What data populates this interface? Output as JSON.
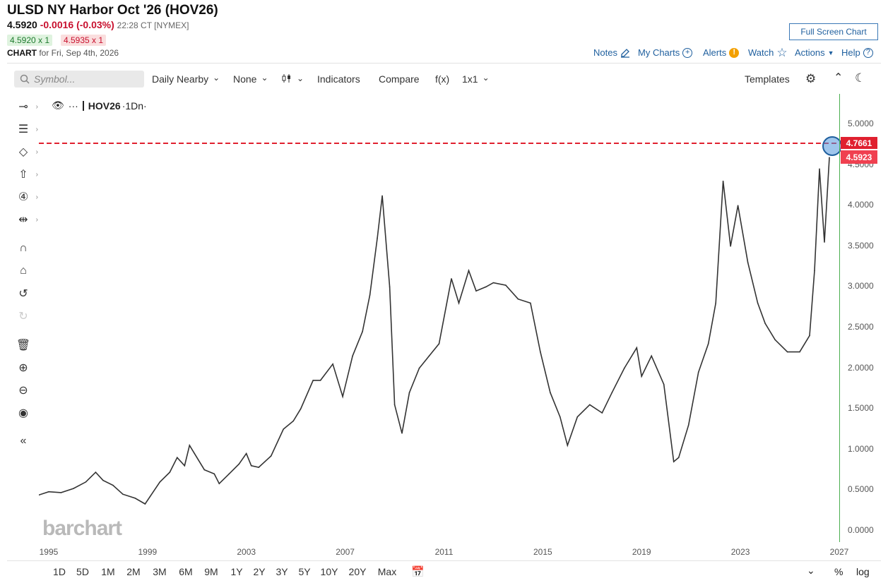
{
  "header": {
    "title": "ULSD NY Harbor Oct '26 (HOV26)",
    "last": "4.5920",
    "change": "-0.0016 (-0.03%)",
    "time": "22:28 CT [NYMEX]",
    "bid": "4.5920 x 1",
    "ask": "4.5935 x 1",
    "chart_label": "CHART",
    "chart_for": "for Fri, Sep 4th, 2026",
    "fullscreen": "Full Screen Chart",
    "links": {
      "notes": "Notes",
      "my_charts": "My Charts",
      "alerts": "Alerts",
      "watch": "Watch",
      "actions": "Actions",
      "help": "Help"
    }
  },
  "toolbar": {
    "symbol_placeholder": "Symbol...",
    "period": "Daily Nearby",
    "overlay": "None",
    "indicators": "Indicators",
    "compare": "Compare",
    "fx": "f(x)",
    "layout": "1x1",
    "templates": "Templates"
  },
  "legend": {
    "symbol": "HOV26",
    "period": "·1Dn·"
  },
  "watermark": "barchart",
  "price_labels": {
    "high": "4.7661",
    "last": "4.5923"
  },
  "y_ticks": [
    "5.0000",
    "4.5000",
    "4.0000",
    "3.5000",
    "3.0000",
    "2.5000",
    "2.0000",
    "1.5000",
    "1.0000",
    "0.5000",
    "0.0000"
  ],
  "x_ticks": [
    "1995",
    "1999",
    "2003",
    "2007",
    "2011",
    "2015",
    "2019",
    "2023",
    "2027"
  ],
  "ranges": [
    "1D",
    "5D",
    "1M",
    "2M",
    "3M",
    "6M",
    "9M",
    "1Y",
    "2Y",
    "3Y",
    "5Y",
    "10Y",
    "20Y",
    "Max"
  ],
  "bottom_right": {
    "percent": "%",
    "log": "log"
  },
  "colors": {
    "link": "#1f5f9e",
    "down": "#c8102e",
    "up": "#1e7b2e",
    "line": "#333333",
    "hline": "#e0202f",
    "marker": "#3a7fc4"
  },
  "chart_data": {
    "type": "line",
    "title": "",
    "xlabel": "",
    "ylabel": "",
    "ylim": [
      0,
      5.15
    ],
    "xlim": [
      1994.6,
      2027.0
    ],
    "horizontal_line": 4.7661,
    "x": [
      1994.6,
      1995.0,
      1995.5,
      1996.0,
      1996.5,
      1996.9,
      1997.2,
      1997.6,
      1998.0,
      1998.5,
      1998.9,
      1999.1,
      1999.5,
      1999.9,
      2000.2,
      2000.5,
      2000.7,
      2000.9,
      2001.3,
      2001.7,
      2001.9,
      2002.3,
      2002.7,
      2003.0,
      2003.2,
      2003.5,
      2004.0,
      2004.5,
      2004.9,
      2005.2,
      2005.7,
      2006.0,
      2006.5,
      2006.9,
      2007.3,
      2007.7,
      2008.0,
      2008.3,
      2008.5,
      2008.8,
      2009.0,
      2009.3,
      2009.6,
      2010.0,
      2010.4,
      2010.8,
      2011.3,
      2011.6,
      2012.0,
      2012.3,
      2012.7,
      2013.0,
      2013.5,
      2014.0,
      2014.5,
      2014.9,
      2015.3,
      2015.7,
      2016.0,
      2016.4,
      2016.9,
      2017.4,
      2017.8,
      2018.3,
      2018.8,
      2019.0,
      2019.4,
      2019.9,
      2020.3,
      2020.5,
      2020.9,
      2021.3,
      2021.7,
      2022.0,
      2022.3,
      2022.6,
      2022.9,
      2023.3,
      2023.7,
      2024.0,
      2024.4,
      2024.9,
      2025.4,
      2025.8,
      2026.0,
      2026.2,
      2026.4,
      2026.6
    ],
    "y": [
      0.44,
      0.48,
      0.47,
      0.52,
      0.6,
      0.72,
      0.62,
      0.56,
      0.45,
      0.4,
      0.33,
      0.42,
      0.6,
      0.72,
      0.9,
      0.8,
      1.05,
      0.95,
      0.75,
      0.7,
      0.58,
      0.7,
      0.82,
      0.95,
      0.8,
      0.78,
      0.92,
      1.25,
      1.35,
      1.5,
      1.85,
      1.85,
      2.05,
      1.65,
      2.15,
      2.45,
      2.9,
      3.6,
      4.12,
      3.0,
      1.55,
      1.2,
      1.7,
      2.0,
      2.15,
      2.3,
      3.1,
      2.8,
      3.2,
      2.95,
      3.0,
      3.05,
      3.02,
      2.85,
      2.8,
      2.2,
      1.7,
      1.4,
      1.05,
      1.4,
      1.55,
      1.45,
      1.7,
      2.0,
      2.25,
      1.9,
      2.15,
      1.8,
      0.85,
      0.9,
      1.3,
      1.95,
      2.3,
      2.8,
      4.3,
      3.5,
      4.0,
      3.3,
      2.8,
      2.55,
      2.35,
      2.2,
      2.2,
      2.4,
      3.2,
      4.45,
      3.55,
      4.59
    ]
  }
}
